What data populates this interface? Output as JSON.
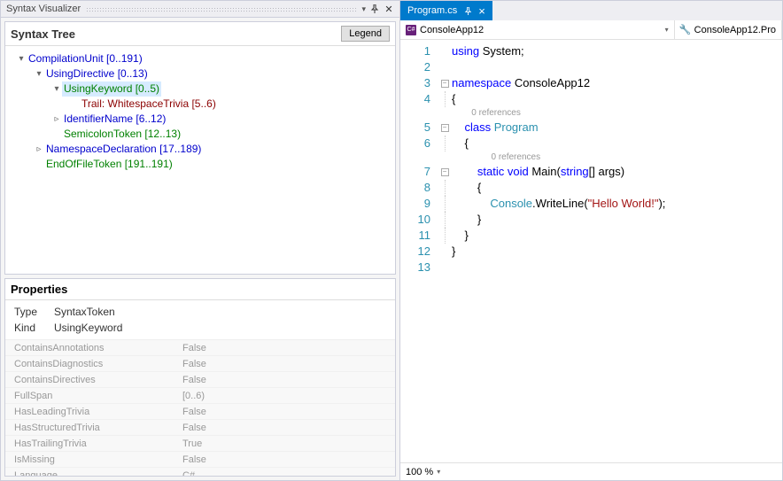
{
  "left": {
    "panel_title": "Syntax Visualizer",
    "tree_title": "Syntax Tree",
    "legend_label": "Legend",
    "tree_nodes": [
      {
        "depth": 0,
        "arrow": "▾",
        "label": "CompilationUnit [0..191)",
        "color": "c-blue",
        "sel": false
      },
      {
        "depth": 1,
        "arrow": "▾",
        "label": "UsingDirective [0..13)",
        "color": "c-blue",
        "sel": false
      },
      {
        "depth": 2,
        "arrow": "▾",
        "label": "UsingKeyword [0..5)",
        "color": "c-green",
        "sel": true
      },
      {
        "depth": 3,
        "arrow": "",
        "label": "Trail: WhitespaceTrivia [5..6)",
        "color": "c-darkred",
        "sel": false
      },
      {
        "depth": 2,
        "arrow": "▹",
        "label": "IdentifierName [6..12)",
        "color": "c-blue",
        "sel": false
      },
      {
        "depth": 2,
        "arrow": "",
        "label": "SemicolonToken [12..13)",
        "color": "c-green",
        "sel": false
      },
      {
        "depth": 1,
        "arrow": "▹",
        "label": "NamespaceDeclaration [17..189)",
        "color": "c-blue",
        "sel": false
      },
      {
        "depth": 1,
        "arrow": "",
        "label": "EndOfFileToken [191..191)",
        "color": "c-green",
        "sel": false
      }
    ],
    "props_title": "Properties",
    "props_top": [
      {
        "key": "Type",
        "val": "SyntaxToken"
      },
      {
        "key": "Kind",
        "val": "UsingKeyword"
      }
    ],
    "props_grid": [
      {
        "key": "ContainsAnnotations",
        "val": "False"
      },
      {
        "key": "ContainsDiagnostics",
        "val": "False"
      },
      {
        "key": "ContainsDirectives",
        "val": "False"
      },
      {
        "key": "FullSpan",
        "val": "[0..6)"
      },
      {
        "key": "HasLeadingTrivia",
        "val": "False"
      },
      {
        "key": "HasStructuredTrivia",
        "val": "False"
      },
      {
        "key": "HasTrailingTrivia",
        "val": "True"
      },
      {
        "key": "IsMissing",
        "val": "False"
      },
      {
        "key": "Language",
        "val": "C#"
      }
    ]
  },
  "right": {
    "tab_name": "Program.cs",
    "context_left": "ConsoleApp12",
    "context_right": "ConsoleApp12.Pro",
    "zoom": "100 %",
    "refs_label": "0 references",
    "line_numbers": [
      "1",
      "2",
      "3",
      "4",
      "5",
      "6",
      "7",
      "8",
      "9",
      "10",
      "11",
      "12",
      "13"
    ],
    "code": {
      "l1": {
        "kw": "using",
        "txt": " System;"
      },
      "l3": {
        "kw": "namespace",
        "txt": " ConsoleApp12"
      },
      "l4": "{",
      "l5": {
        "pad": "    ",
        "kw": "class",
        "sp": " ",
        "type": "Program"
      },
      "l6": {
        "pad": "    ",
        "txt": "{"
      },
      "l7": {
        "pad": "        ",
        "kw1": "static",
        "sp1": " ",
        "kw2": "void",
        "sp2": " ",
        "m": "Main(",
        "kw3": "string",
        "rest": "[] args)"
      },
      "l8": {
        "pad": "        ",
        "txt": "{"
      },
      "l9": {
        "pad": "            ",
        "type": "Console",
        "mid": ".WriteLine(",
        "str": "\"Hello World!\"",
        "end": ");"
      },
      "l10": {
        "pad": "        ",
        "txt": "}"
      },
      "l11": {
        "pad": "    ",
        "txt": "}"
      },
      "l12": "}"
    }
  },
  "colors": {
    "tab_active_bg": "#007acc",
    "link_blue": "#0000cc",
    "token_green": "#008000",
    "trivia_red": "#8b0000",
    "code_keyword": "#0000ff",
    "code_type": "#2b91af",
    "code_string": "#a31515"
  }
}
